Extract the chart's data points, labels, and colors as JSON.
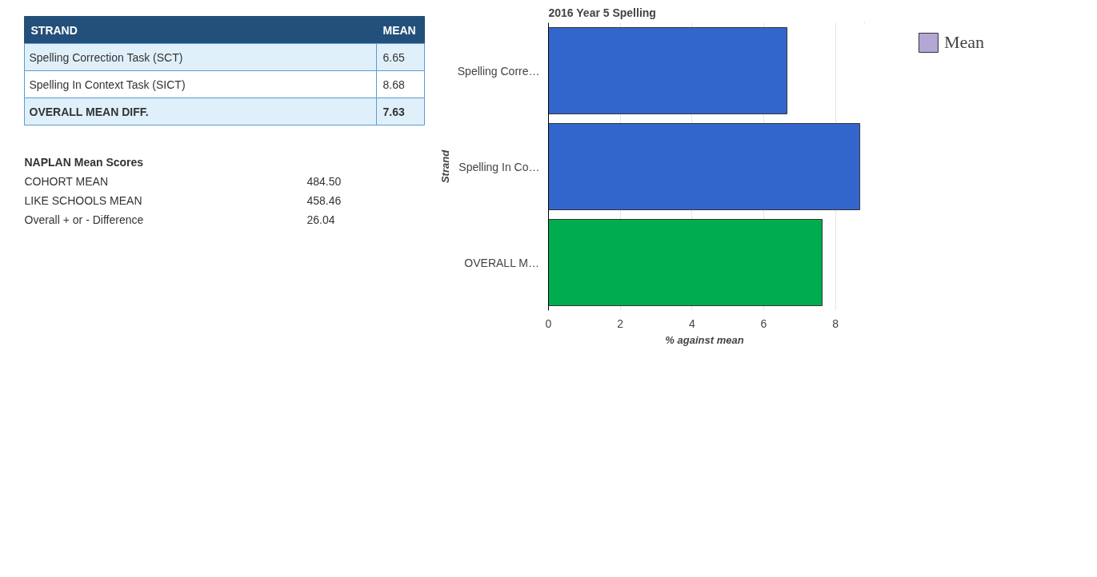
{
  "chart_data": [
    {
      "type": "other",
      "xlabel": "STRAND",
      "ylabel": "MEAN",
      "categories": [
        "Spelling Correction Task (SCT)",
        "Spelling In Context Task (SICT)",
        "OVERALL MEAN DIFF."
      ],
      "values": [
        6.65,
        8.68,
        7.63
      ],
      "data_labels": true
    },
    {
      "type": "other",
      "title": "NAPLAN Mean Scores",
      "categories": [
        "COHORT MEAN",
        "LIKE SCHOOLS MEAN",
        "Overall + or - Difference"
      ],
      "values": [
        484.5,
        458.46,
        26.04
      ],
      "value_labels": [
        "484.50",
        "458.46",
        "26.04"
      ]
    },
    {
      "type": "bar",
      "orientation": "horizontal",
      "title": "2016 Year 5 Spelling",
      "xlabel": "% against mean",
      "ylabel": "Strand",
      "categories": [
        "Spelling Corre…",
        "Spelling In Co…",
        "OVERALL M…"
      ],
      "series": [
        {
          "name": "Mean",
          "color": "#b4a7d6",
          "values": [
            6.65,
            8.68,
            7.63
          ],
          "colors": [
            "#3366cc",
            "#3366cc",
            "#00ad4e"
          ]
        }
      ],
      "xlim": [
        0,
        8.7
      ],
      "xticks": [
        0,
        2,
        4,
        6,
        8
      ],
      "grid": "x",
      "legend": "top right"
    }
  ]
}
